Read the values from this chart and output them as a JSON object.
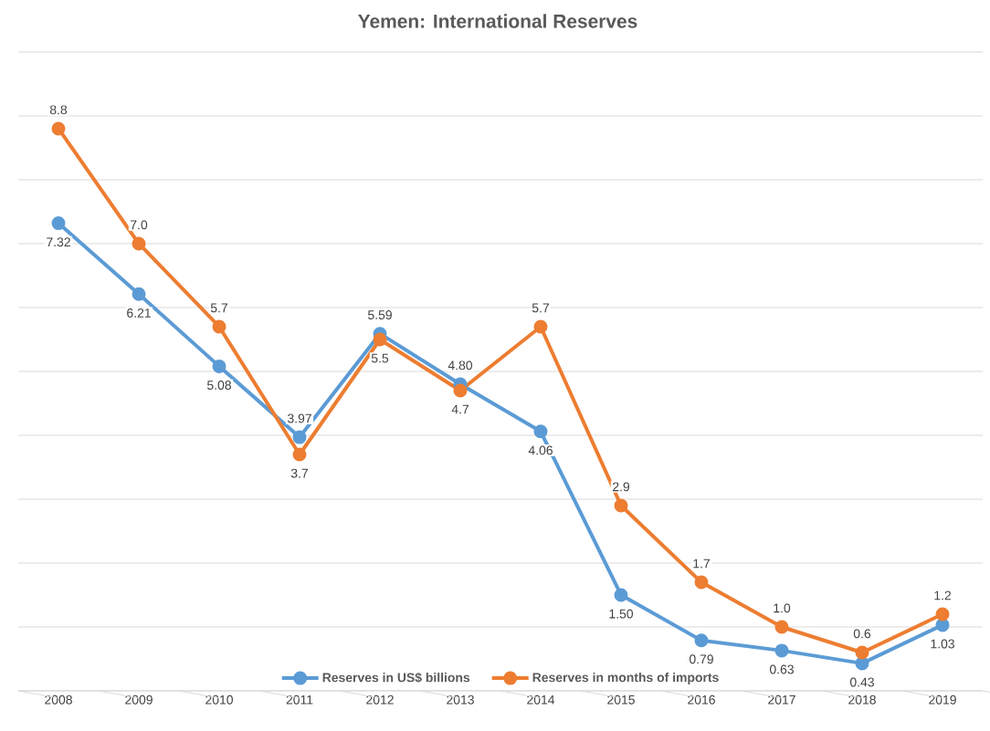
{
  "chart_data": {
    "type": "line",
    "title": "Yemen: International Reserves",
    "categories": [
      "2008",
      "2009",
      "2010",
      "2011",
      "2012",
      "2013",
      "2014",
      "2015",
      "2016",
      "2017",
      "2018",
      "2019"
    ],
    "series": [
      {
        "name": "Reserves in US$ billions",
        "color": "#5b9bd5",
        "values": [
          7.32,
          6.21,
          5.08,
          3.97,
          5.59,
          4.8,
          4.06,
          1.5,
          0.79,
          0.63,
          0.43,
          1.03
        ],
        "value_labels": [
          "7.32",
          "6.21",
          "5.08",
          "3.97",
          "5.59",
          "4.80",
          "4.06",
          "1.50",
          "0.79",
          "0.63",
          "0.43",
          "1.03"
        ]
      },
      {
        "name": "Reserves in months of imports",
        "color": "#ed7d31",
        "values": [
          8.8,
          7.0,
          5.7,
          3.7,
          5.5,
          4.7,
          5.7,
          2.9,
          1.7,
          1.0,
          0.6,
          1.2
        ],
        "value_labels": [
          "8.8",
          "7.0",
          "5.7",
          "3.7",
          "5.5",
          "4.7",
          "5.7",
          "2.9",
          "1.7",
          "1.0",
          "0.6",
          "1.2"
        ]
      }
    ],
    "ylim": [
      0,
      10
    ],
    "yticks": [
      {
        "value": 0,
        "label": null
      },
      {
        "value": 1,
        "label": null
      },
      {
        "value": 2,
        "label": null
      },
      {
        "value": 3,
        "label": null
      },
      {
        "value": 4,
        "label": null
      },
      {
        "value": 5,
        "label": null
      },
      {
        "value": 6,
        "label": null
      },
      {
        "value": 7,
        "label": null
      },
      {
        "value": 8,
        "label": null
      },
      {
        "value": 9,
        "label": null
      },
      {
        "value": 10,
        "label": null
      }
    ],
    "grid": "y",
    "legend": "bottom",
    "marker": "circle",
    "tick_labels": "x"
  }
}
